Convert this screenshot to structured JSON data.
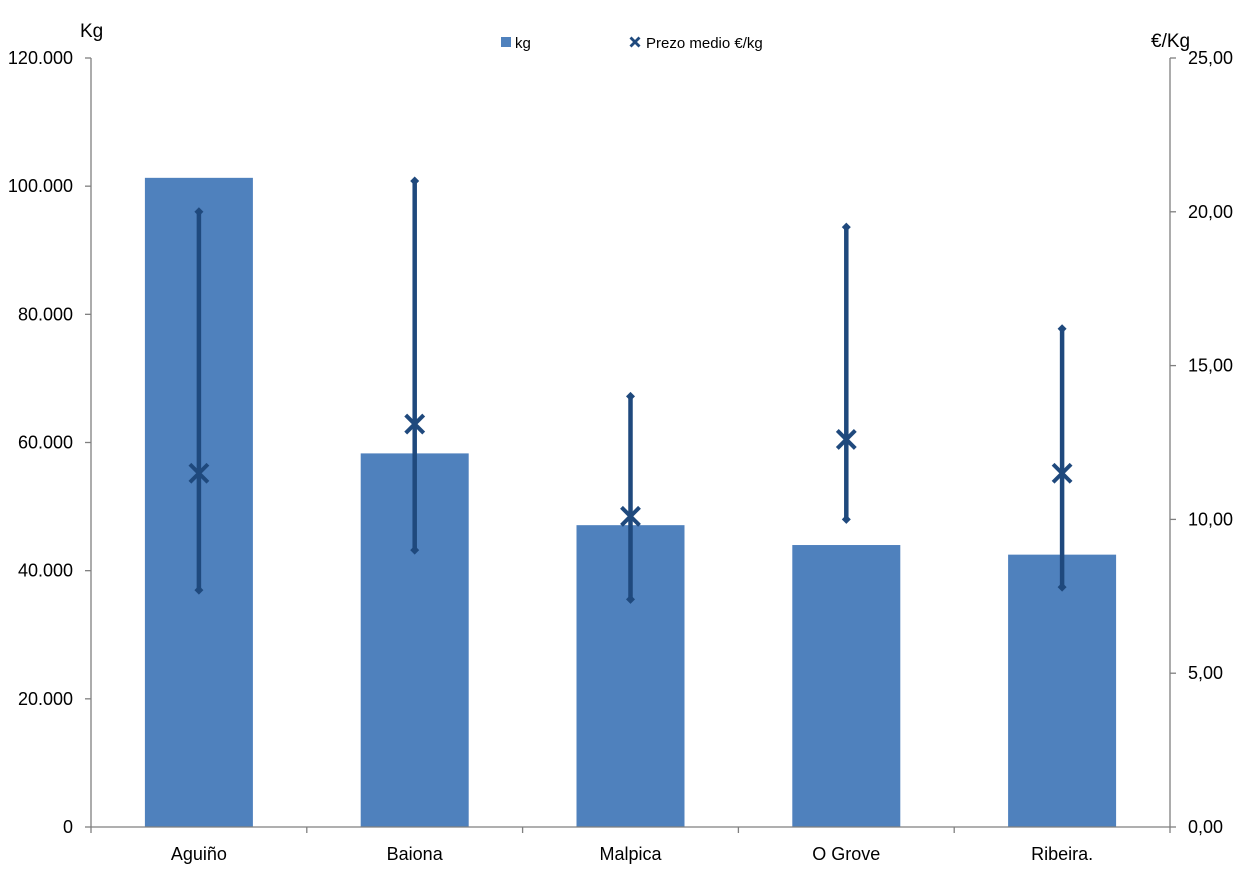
{
  "chart_data": {
    "type": "bar",
    "categories": [
      "Aguiño",
      "Baiona",
      "Malpica",
      "O Grove",
      "Ribeira."
    ],
    "series": [
      {
        "name": "kg",
        "type": "bar",
        "axis": "left",
        "color": "#4F81BD",
        "values": [
          101300,
          58300,
          47100,
          44000,
          42500
        ]
      },
      {
        "name": "Prezo medio €/kg",
        "type": "range-with-mean",
        "axis": "right",
        "color": "#1F497D",
        "mean": [
          11.5,
          13.1,
          10.1,
          12.6,
          11.5
        ],
        "min": [
          7.7,
          9.0,
          7.4,
          10.0,
          7.8
        ],
        "max": [
          20.0,
          21.0,
          14.0,
          19.5,
          16.2
        ]
      }
    ],
    "y_left": {
      "title": "Kg",
      "lim": [
        0,
        120000
      ],
      "ticks": [
        0,
        20000,
        40000,
        60000,
        80000,
        100000,
        120000
      ],
      "tick_labels": [
        "0",
        "20.000",
        "40.000",
        "60.000",
        "80.000",
        "100.000",
        "120.000"
      ]
    },
    "y_right": {
      "title": "€/Kg",
      "lim": [
        0,
        25
      ],
      "ticks": [
        0,
        5,
        10,
        15,
        20,
        25
      ],
      "tick_labels": [
        "0,00",
        "5,00",
        "10,00",
        "15,00",
        "20,00",
        "25,00"
      ]
    },
    "legend": {
      "position": "top-center",
      "entries": [
        "kg",
        "Prezo medio €/kg"
      ]
    },
    "grid": false
  }
}
